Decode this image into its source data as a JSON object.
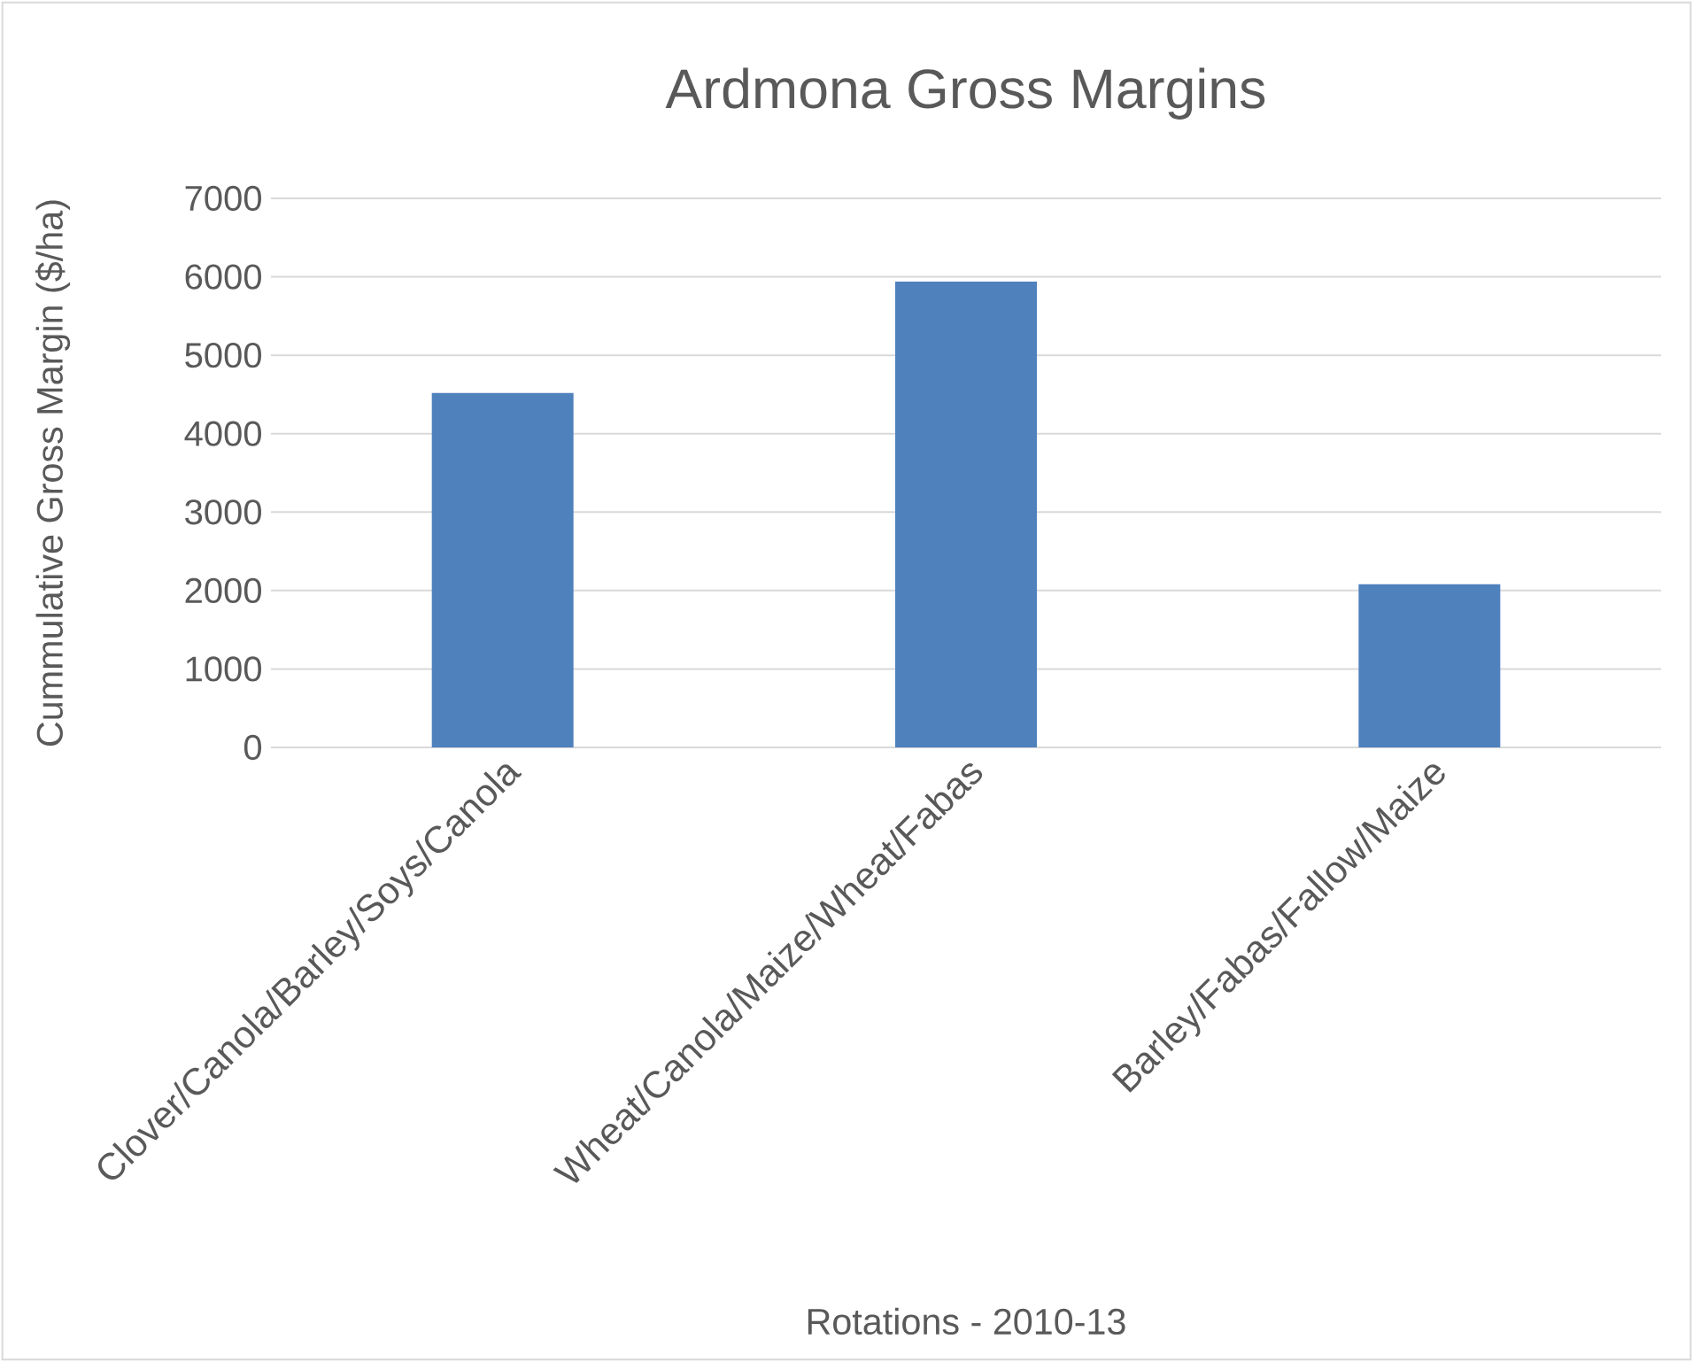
{
  "chart_data": {
    "type": "bar",
    "title": "Ardmona Gross Margins",
    "xlabel": "Rotations - 2010-13",
    "ylabel": "Cummulative Gross Margin ($/ha)",
    "categories": [
      "Clover/Canola/Barley/Soys/Canola",
      "Wheat/Canola/Maize/Wheat/Fabas",
      "Barley/Fabas/Fallow/Maize"
    ],
    "values": [
      4520,
      5940,
      2080
    ],
    "color": "#4f81bd",
    "ylim": [
      0,
      7000
    ],
    "yticks": [
      0,
      1000,
      2000,
      3000,
      4000,
      5000,
      6000,
      7000
    ],
    "grid": "y"
  }
}
